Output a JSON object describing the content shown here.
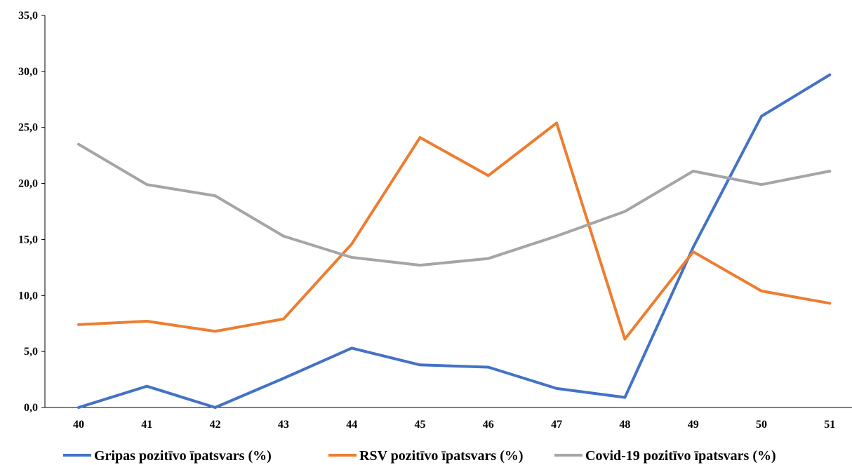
{
  "chart_data": {
    "type": "line",
    "categories": [
      "40",
      "41",
      "42",
      "43",
      "44",
      "45",
      "46",
      "47",
      "48",
      "49",
      "50",
      "51"
    ],
    "ylim": [
      0,
      35
    ],
    "yticks": [
      0,
      5,
      10,
      15,
      20,
      25,
      30,
      35
    ],
    "ytick_labels": [
      "0,0",
      "5,0",
      "10,0",
      "15,0",
      "20,0",
      "25,0",
      "30,0",
      "35,0"
    ],
    "grid": false,
    "legend_position": "bottom",
    "series": [
      {
        "name": "Gripas pozitīvo  īpatsvars (%)",
        "color": "#4472C4",
        "values": [
          0.0,
          1.9,
          0.0,
          2.6,
          5.3,
          3.8,
          3.6,
          1.7,
          0.9,
          14.3,
          26.0,
          29.7
        ]
      },
      {
        "name": "RSV pozitīvo īpatsvars (%)",
        "color": "#ED7D31",
        "values": [
          7.4,
          7.7,
          6.8,
          7.9,
          14.6,
          24.1,
          20.7,
          25.4,
          6.1,
          13.9,
          10.4,
          9.3
        ]
      },
      {
        "name": "Covid-19 pozitīvo īpatsvars (%)",
        "color": "#A5A5A5",
        "values": [
          23.5,
          19.9,
          18.9,
          15.3,
          13.4,
          12.7,
          13.3,
          15.3,
          17.5,
          21.1,
          19.9,
          21.1
        ]
      }
    ]
  }
}
